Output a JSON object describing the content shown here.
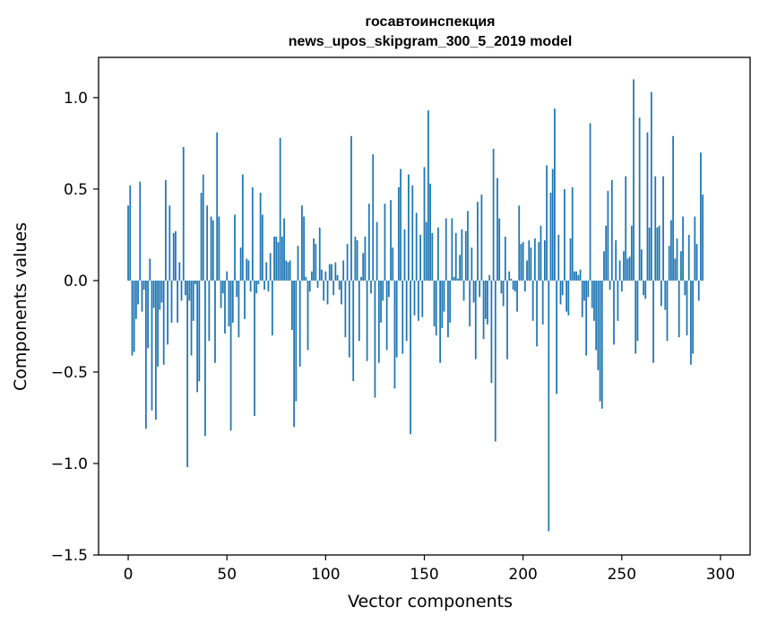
{
  "chart_data": {
    "type": "bar",
    "title": "госавтоинспекция",
    "subtitle": "news_upos_skipgram_300_5_2019 model",
    "xlabel": "Vector components",
    "ylabel": "Components values",
    "xlim": [
      -15,
      315
    ],
    "ylim": [
      -1.5,
      1.22
    ],
    "xticks": [
      0,
      50,
      100,
      150,
      200,
      250,
      300
    ],
    "yticks": [
      -1.5,
      -1.0,
      -0.5,
      0.0,
      0.5,
      1.0
    ],
    "xtick_labels": [
      "0",
      "50",
      "100",
      "150",
      "200",
      "250",
      "300"
    ],
    "ytick_labels": [
      "−1.5",
      "−1.0",
      "−0.5",
      "0.0",
      "0.5",
      "1.0"
    ],
    "bar_color": "#1f77b4",
    "values": [
      0.41,
      0.52,
      -0.41,
      -0.39,
      -0.21,
      -0.13,
      0.54,
      -0.17,
      -0.05,
      -0.81,
      -0.37,
      0.12,
      -0.71,
      -0.15,
      -0.76,
      -0.47,
      -0.16,
      -0.12,
      -0.46,
      0.55,
      -0.35,
      0.41,
      -0.23,
      0.26,
      0.27,
      -0.23,
      0.1,
      -0.11,
      0.73,
      -0.08,
      -1.02,
      -0.11,
      -0.41,
      -0.22,
      -0.02,
      -0.61,
      -0.55,
      0.48,
      0.58,
      -0.85,
      0.41,
      -0.33,
      0.35,
      0.33,
      -0.45,
      0.81,
      0.35,
      -0.15,
      -0.07,
      -0.29,
      0.05,
      -0.25,
      -0.82,
      -0.23,
      0.36,
      -0.09,
      -0.31,
      0.18,
      0.58,
      -0.21,
      0.12,
      0.11,
      -0.06,
      0.51,
      -0.74,
      -0.07,
      -0.02,
      0.48,
      0.36,
      -0.05,
      0.1,
      -0.06,
      0.15,
      -0.3,
      0.24,
      0.24,
      0.21,
      0.78,
      0.24,
      0.34,
      0.11,
      0.1,
      0.11,
      -0.27,
      -0.8,
      -0.66,
      0.19,
      -0.47,
      0.41,
      0.35,
      0.02,
      -0.38,
      -0.06,
      0.05,
      0.23,
      0.2,
      -0.04,
      0.29,
      0.06,
      -0.11,
      0.05,
      -0.13,
      0.09,
      0.09,
      -0.08,
      0.1,
      0.03,
      -0.05,
      -0.13,
      0.11,
      -0.31,
      0.2,
      -0.42,
      0.79,
      -0.55,
      0.24,
      0.22,
      -0.33,
      0.02,
      0.15,
      0.24,
      -0.44,
      0.42,
      -0.07,
      0.69,
      -0.64,
      0.32,
      -0.45,
      -0.23,
      -0.11,
      0.42,
      -0.38,
      -0.09,
      0.44,
      0.18,
      -0.59,
      -0.42,
      0.51,
      0.61,
      -0.4,
      0.28,
      -0.33,
      0.58,
      -0.84,
      0.52,
      -0.19,
      0.37,
      -0.22,
      0.25,
      -0.2,
      0.62,
      0.32,
      0.93,
      0.53,
      0.26,
      -0.25,
      -0.3,
      0.29,
      -0.45,
      -0.26,
      -0.17,
      0.34,
      -0.31,
      -0.23,
      0.34,
      0.02,
      0.26,
      0.01,
      0.14,
      0.28,
      -0.11,
      0.27,
      0.38,
      -0.25,
      0.18,
      -0.12,
      -0.43,
      0.43,
      -0.09,
      0.47,
      -0.32,
      -0.21,
      -0.24,
      0.03,
      -0.56,
      0.72,
      -0.88,
      0.56,
      0.34,
      -0.07,
      -0.14,
      0.24,
      -0.43,
      0.05,
      0.01,
      -0.05,
      -0.06,
      -0.17,
      0.41,
      0.2,
      0.21,
      -0.06,
      0.11,
      0.22,
      0.18,
      -0.22,
      0.23,
      -0.36,
      0.21,
      0.3,
      -0.24,
      0.22,
      0.63,
      -1.37,
      0.48,
      0.61,
      0.94,
      -0.62,
      0.25,
      -0.13,
      -0.08,
      0.5,
      -0.17,
      -0.19,
      0.23,
      0.51,
      0.05,
      0.05,
      0.03,
      0.06,
      -0.2,
      -0.11,
      -0.41,
      -0.09,
      0.86,
      -0.15,
      -0.22,
      -0.38,
      -0.49,
      -0.66,
      -0.7,
      0.16,
      0.3,
      0.49,
      -0.05,
      0.55,
      -0.35,
      0.22,
      -0.22,
      0.11,
      -0.06,
      0.16,
      0.57,
      0.12,
      0.13,
      0.3,
      1.1,
      -0.4,
      -0.33,
      0.89,
      0.17,
      -0.08,
      -0.1,
      0.81,
      0.29,
      1.03,
      -0.45,
      0.57,
      0.29,
      0.3,
      -0.14,
      0.57,
      -0.16,
      -0.33,
      0.19,
      0.33,
      0.79,
      0.12,
      0.23,
      -0.31,
      0.16,
      0.35,
      -0.08,
      -0.3,
      0.25,
      -0.46,
      -0.4,
      0.35,
      0.2,
      -0.11,
      0.7,
      0.47
    ]
  }
}
